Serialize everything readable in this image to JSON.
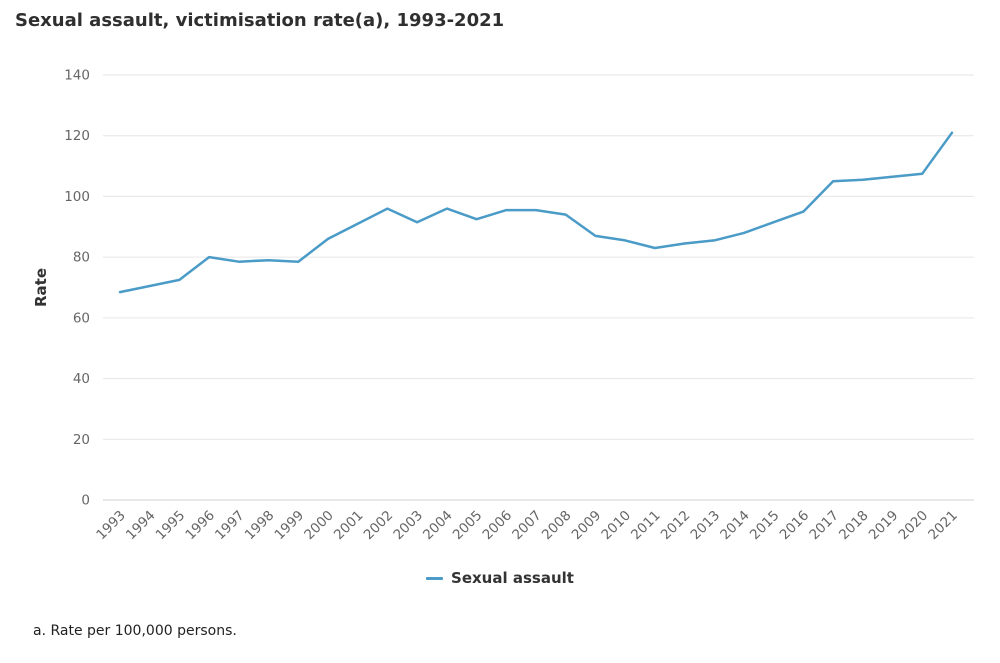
{
  "title": "Sexual assault, victimisation rate(a), 1993-2021",
  "legend": {
    "label": "Sexual assault"
  },
  "footnote": "a. Rate per 100,000 persons.",
  "colors": {
    "series_line": "#4a9bc7",
    "gridline": "#e6e6e6",
    "zero_line": "#d2d2d2",
    "tick_label": "#666666",
    "axis_title": "#333333",
    "title_text": "#2f2f2f"
  },
  "chart_data": {
    "type": "line",
    "title": "Sexual assault, victimisation rate(a), 1993-2021",
    "xlabel": "",
    "ylabel": "Rate",
    "ylim": [
      0,
      140
    ],
    "ytick_step": 20,
    "grid": true,
    "legend_position": "bottom-center",
    "categories": [
      "1993",
      "1994",
      "1995",
      "1996",
      "1997",
      "1998",
      "1999",
      "2000",
      "2001",
      "2002",
      "2003",
      "2004",
      "2005",
      "2006",
      "2007",
      "2008",
      "2009",
      "2010",
      "2011",
      "2012",
      "2013",
      "2014",
      "2015",
      "2016",
      "2017",
      "2018",
      "2019",
      "2020",
      "2021"
    ],
    "series": [
      {
        "name": "Sexual assault",
        "color": "#4a9bc7",
        "values": [
          68.5,
          70.5,
          72.5,
          80,
          78.5,
          79,
          78.5,
          86,
          91,
          96,
          91.5,
          96,
          92.5,
          95.5,
          95.5,
          94,
          87,
          85.5,
          83,
          84.5,
          85.5,
          88,
          91.5,
          95,
          105,
          105.5,
          106.5,
          107.5,
          121
        ]
      }
    ]
  }
}
